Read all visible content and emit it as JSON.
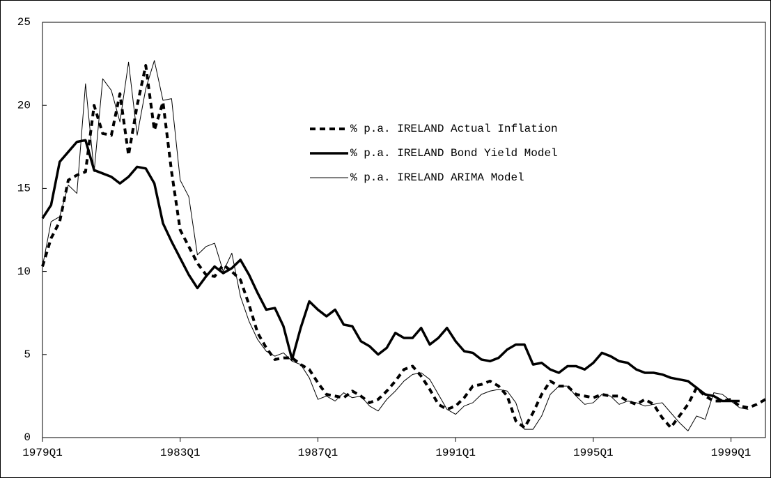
{
  "chart_data": {
    "type": "line",
    "categories": [
      "1979Q1",
      null,
      null,
      null,
      null,
      null,
      null,
      null,
      null,
      null,
      null,
      null,
      null,
      null,
      null,
      null,
      "1983Q1",
      null,
      null,
      null,
      null,
      null,
      null,
      null,
      null,
      null,
      null,
      null,
      null,
      null,
      null,
      null,
      "1987Q1",
      null,
      null,
      null,
      null,
      null,
      null,
      null,
      null,
      null,
      null,
      null,
      null,
      null,
      null,
      null,
      "1991Q1",
      null,
      null,
      null,
      null,
      null,
      null,
      null,
      null,
      null,
      null,
      null,
      null,
      null,
      null,
      null,
      "1995Q1",
      null,
      null,
      null,
      null,
      null,
      null,
      null,
      null,
      null,
      null,
      null,
      null,
      null,
      null,
      null,
      "1999Q1",
      null,
      null,
      null,
      null
    ],
    "series": [
      {
        "name": "% p.a. IRELAND Actual Inflation",
        "color": "#000000",
        "line_width": 4,
        "dash": [
          8,
          6
        ],
        "values": [
          10.3,
          12,
          13,
          15.5,
          15.8,
          16,
          20,
          18.3,
          18.2,
          20.7,
          17,
          20,
          22.4,
          18.5,
          20.2,
          16,
          12.5,
          11.5,
          10.5,
          9.8,
          9.7,
          10.4,
          10,
          9.5,
          8,
          6.3,
          5.4,
          4.7,
          4.8,
          4.8,
          4.4,
          4.1,
          3.3,
          2.6,
          2.5,
          2.4,
          2.8,
          2.5,
          2.1,
          2.3,
          2.8,
          3.4,
          4.1,
          4.3,
          3.7,
          2.9,
          2,
          1.7,
          1.9,
          2.4,
          3.1,
          3.2,
          3.4,
          3.1,
          2.5,
          1,
          0.6,
          1.5,
          2.6,
          3.4,
          3.1,
          3.1,
          2.6,
          2.5,
          2.4,
          2.6,
          2.5,
          2.5,
          2.2,
          2,
          2.3,
          2,
          1.2,
          0.6,
          1.3,
          2,
          3,
          2.5,
          2.2,
          2.2,
          2.3,
          1.9,
          1.8,
          2,
          2.3
        ]
      },
      {
        "name": "% p.a. IRELAND Bond Yield Model",
        "color": "#000000",
        "line_width": 3.5,
        "dash": null,
        "values": [
          13.2,
          14,
          16.6,
          17.2,
          17.8,
          17.9,
          16.1,
          15.9,
          15.7,
          15.3,
          15.7,
          16.3,
          16.2,
          15.3,
          12.9,
          11.8,
          10.8,
          9.8,
          9,
          9.7,
          10.3,
          9.9,
          10.2,
          10.7,
          9.8,
          8.7,
          7.7,
          7.8,
          6.7,
          4.7,
          6.6,
          8.2,
          7.7,
          7.3,
          7.7,
          6.8,
          6.7,
          5.8,
          5.5,
          5,
          5.4,
          6.3,
          6,
          6,
          6.6,
          5.6,
          6,
          6.6,
          5.8,
          5.2,
          5.1,
          4.7,
          4.6,
          4.8,
          5.3,
          5.6,
          5.6,
          4.4,
          4.5,
          4.1,
          3.9,
          4.3,
          4.3,
          4.1,
          4.5,
          5.1,
          4.9,
          4.6,
          4.5,
          4.1,
          3.9,
          3.9,
          3.8,
          3.6,
          3.5,
          3.4,
          3,
          2.6,
          2.5,
          2.2,
          2.2,
          2.2,
          null,
          null,
          null
        ]
      },
      {
        "name": "% p.a. IRELAND ARIMA Model",
        "color": "#000000",
        "line_width": 1,
        "dash": null,
        "values": [
          10.3,
          13,
          13.3,
          15.2,
          14.7,
          21.3,
          16,
          21.6,
          20.9,
          19,
          22.6,
          18.2,
          21,
          22.7,
          20.3,
          20.4,
          15.5,
          14.5,
          11,
          11.5,
          11.7,
          10,
          11.1,
          8.5,
          7,
          5.9,
          5.2,
          4.9,
          5.1,
          4.6,
          4.4,
          3.6,
          2.3,
          2.5,
          2.2,
          2.7,
          2.4,
          2.5,
          1.9,
          1.6,
          2.3,
          2.8,
          3.4,
          3.8,
          3.9,
          3.5,
          2.6,
          1.7,
          1.4,
          1.9,
          2.1,
          2.6,
          2.8,
          2.9,
          2.8,
          2.1,
          0.5,
          0.5,
          1.3,
          2.6,
          3.1,
          3.1,
          2.5,
          2,
          2.1,
          2.6,
          2.5,
          2,
          2.2,
          2.1,
          1.9,
          2,
          2.1,
          1.5,
          0.9,
          0.4,
          1.3,
          1.1,
          2.7,
          2.6,
          2.2,
          1.8,
          1.7,
          null,
          null
        ]
      }
    ],
    "ylim": [
      0,
      25
    ],
    "yticks": [
      0,
      5,
      10,
      15,
      20,
      25
    ],
    "grid": false,
    "legend": "upper-center"
  }
}
